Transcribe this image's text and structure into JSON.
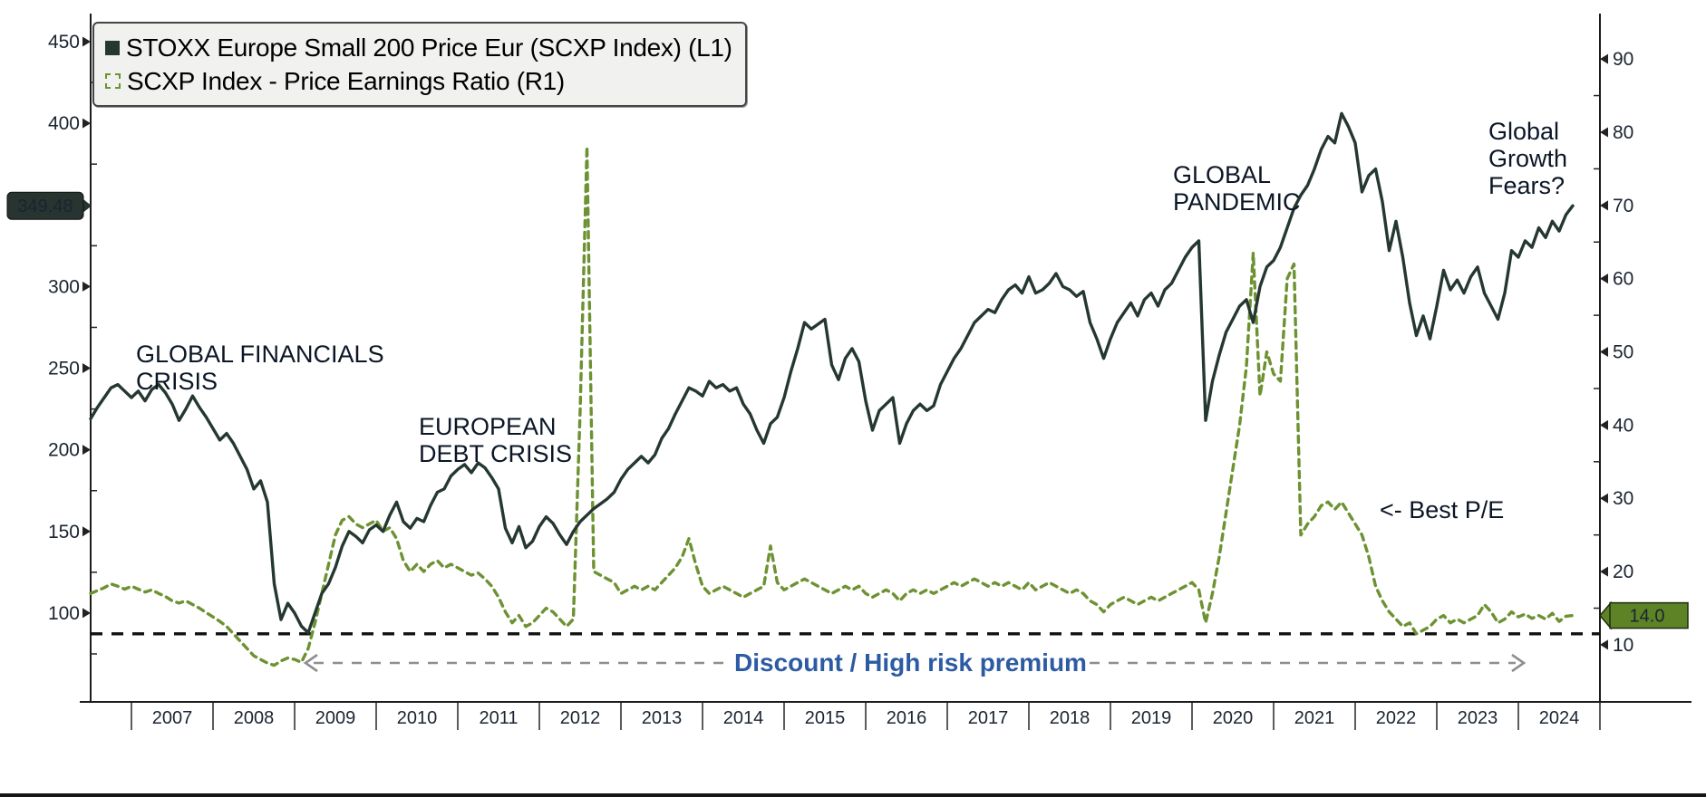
{
  "legend": {
    "items": [
      {
        "label": "STOXX Europe Small 200 Price Eur (SCXP Index) (L1)",
        "marker": "filled-square-icon",
        "color": "#243830"
      },
      {
        "label": "SCXP Index - Price Earnings Ratio (R1)",
        "marker": "dashed-square-icon",
        "color": "#6d9232"
      }
    ]
  },
  "annotations": {
    "financial_crisis": {
      "line1": "GLOBAL FINANCIALS",
      "line2": "CRISIS"
    },
    "debt_crisis": {
      "line1": "EUROPEAN",
      "line2": "DEBT CRISIS"
    },
    "pandemic": {
      "line1": "GLOBAL",
      "line2": "PANDEMIC"
    },
    "growth_fears": {
      "line1": "Global",
      "line2": "Growth",
      "line3": "Fears?"
    },
    "best_pe": {
      "line1": "<- Best P/E"
    },
    "discount": {
      "label": "Discount / High risk premium",
      "color": "#2d5ba3",
      "arrow_color": "#8e8e8e"
    }
  },
  "chart_data": {
    "type": "line",
    "x_axis": {
      "domain": [
        2006.5,
        2025.0
      ],
      "year_labels": [
        "2007",
        "2008",
        "2009",
        "2010",
        "2011",
        "2012",
        "2013",
        "2014",
        "2015",
        "2016",
        "2017",
        "2018",
        "2019",
        "2020",
        "2021",
        "2022",
        "2023",
        "2024"
      ]
    },
    "left_axis": {
      "range": [
        45.6,
        467.2
      ],
      "label_values": [
        450,
        400,
        350,
        300,
        250,
        200,
        150,
        100
      ],
      "minor_values": [
        425,
        375,
        325,
        275,
        225,
        175,
        125,
        75
      ]
    },
    "right_axis": {
      "range": [
        2.2,
        96.2
      ],
      "label_values": [
        90,
        80,
        70,
        60,
        50,
        40,
        30,
        20,
        10
      ],
      "minor_values": [
        85,
        75,
        65,
        55,
        45,
        35,
        25,
        15
      ]
    },
    "reference_line": {
      "axis": "right",
      "value": 11.5,
      "color": "#111111"
    },
    "series": [
      {
        "name": "STOXX Europe Small 200 Price Eur (SCXP Index)",
        "axis": "left",
        "color": "#243830",
        "dashed": false,
        "last_badge": {
          "label": "349.48",
          "bg": "#273430",
          "text_color": "#ffffff"
        },
        "start": 2006.5,
        "step_per_year": 12,
        "values": [
          219,
          226,
          232,
          238,
          240,
          236,
          232,
          236,
          230,
          237,
          240,
          235,
          228,
          218,
          225,
          233,
          226,
          220,
          213,
          206,
          210,
          204,
          196,
          188,
          176,
          181,
          168,
          118,
          96,
          106,
          100,
          92,
          88,
          100,
          112,
          118,
          128,
          141,
          150,
          147,
          143,
          151,
          154,
          150,
          160,
          168,
          156,
          152,
          158,
          156,
          166,
          174,
          176,
          184,
          188,
          191,
          186,
          192,
          189,
          183,
          176,
          152,
          143,
          153,
          140,
          144,
          153,
          159,
          155,
          148,
          142,
          150,
          156,
          160,
          164,
          167,
          170,
          174,
          182,
          188,
          192,
          196,
          192,
          197,
          207,
          213,
          222,
          230,
          238,
          236,
          233,
          242,
          238,
          240,
          236,
          238,
          228,
          222,
          212,
          204,
          216,
          220,
          232,
          248,
          262,
          278,
          274,
          277,
          280,
          252,
          243,
          256,
          262,
          254,
          230,
          212,
          224,
          228,
          232,
          204,
          216,
          224,
          228,
          224,
          227,
          240,
          248,
          256,
          262,
          270,
          278,
          282,
          286,
          284,
          292,
          298,
          301,
          296,
          306,
          296,
          298,
          302,
          308,
          300,
          298,
          294,
          297,
          278,
          268,
          256,
          268,
          278,
          284,
          290,
          282,
          292,
          296,
          288,
          298,
          302,
          310,
          318,
          324,
          328,
          218,
          242,
          258,
          272,
          280,
          288,
          292,
          278,
          300,
          312,
          316,
          324,
          336,
          348,
          356,
          362,
          372,
          384,
          392,
          388,
          406,
          398,
          388,
          358,
          368,
          372,
          352,
          322,
          340,
          318,
          290,
          270,
          282,
          268,
          288,
          310,
          298,
          304,
          296,
          306,
          312,
          296,
          288,
          280,
          296,
          322,
          318,
          328,
          324,
          336,
          330,
          340,
          334,
          344,
          349.48
        ]
      },
      {
        "name": "SCXP Index - Price Earnings Ratio",
        "axis": "right",
        "color": "#6d9232",
        "dashed": true,
        "last_badge": {
          "label": "14.0",
          "bg": "#5e8326",
          "text_color": "#ffffff"
        },
        "start": 2006.5,
        "step_per_year": 12,
        "values": [
          17.0,
          17.4,
          17.8,
          18.3,
          18.0,
          17.6,
          18.0,
          17.6,
          17.2,
          17.5,
          17.0,
          16.6,
          16.0,
          15.7,
          16.0,
          15.5,
          15.0,
          14.4,
          13.8,
          13.2,
          12.5,
          11.5,
          10.5,
          9.5,
          8.5,
          8.0,
          7.5,
          7.2,
          7.8,
          8.2,
          8.0,
          7.6,
          9.5,
          13.0,
          17.0,
          21.0,
          25.0,
          27.0,
          27.5,
          26.5,
          26.0,
          26.5,
          27.0,
          25.5,
          26.0,
          24.5,
          21.5,
          20.0,
          21.0,
          20.0,
          21.0,
          21.5,
          20.5,
          21.0,
          20.5,
          20.0,
          19.5,
          19.8,
          19.0,
          18.0,
          16.5,
          14.5,
          13.0,
          14.0,
          12.5,
          13.0,
          14.0,
          15.0,
          14.5,
          13.5,
          12.5,
          13.5,
          42.0,
          78.0,
          20.0,
          19.5,
          19.0,
          18.5,
          17.0,
          17.5,
          18.0,
          17.5,
          18.0,
          17.5,
          18.5,
          19.5,
          20.5,
          22.0,
          24.5,
          21.0,
          18.0,
          17.0,
          17.5,
          18.0,
          17.5,
          17.0,
          16.5,
          17.0,
          17.5,
          18.0,
          23.5,
          18.5,
          17.5,
          18.0,
          18.5,
          19.0,
          18.5,
          18.0,
          17.5,
          17.0,
          17.5,
          18.0,
          17.5,
          18.0,
          17.0,
          16.5,
          17.0,
          17.5,
          17.0,
          16.0,
          17.0,
          17.5,
          17.0,
          17.5,
          17.0,
          17.5,
          18.0,
          18.5,
          18.0,
          18.5,
          19.0,
          18.5,
          18.0,
          18.5,
          18.0,
          18.5,
          18.0,
          17.5,
          18.5,
          17.5,
          18.0,
          18.5,
          18.0,
          17.5,
          17.0,
          17.5,
          17.0,
          16.0,
          15.5,
          14.5,
          15.5,
          16.0,
          16.5,
          16.0,
          15.5,
          16.0,
          16.5,
          16.0,
          16.5,
          17.0,
          17.5,
          18.0,
          18.5,
          17.5,
          13.0,
          17.0,
          22.0,
          28.0,
          34.0,
          40.0,
          48.0,
          63.5,
          44.0,
          50.0,
          47.0,
          46.0,
          60.0,
          62.0,
          25.0,
          26.5,
          27.5,
          29.0,
          29.5,
          28.5,
          29.5,
          28.0,
          26.5,
          25.0,
          22.0,
          18.0,
          16.0,
          14.5,
          13.5,
          12.5,
          13.0,
          11.5,
          12.0,
          12.5,
          13.5,
          14.0,
          13.0,
          13.5,
          13.0,
          13.5,
          14.0,
          15.5,
          14.5,
          13.0,
          13.5,
          14.5,
          13.8,
          14.2,
          13.6,
          14.0,
          13.5,
          14.3,
          13.2,
          13.9,
          14.0
        ]
      }
    ]
  }
}
